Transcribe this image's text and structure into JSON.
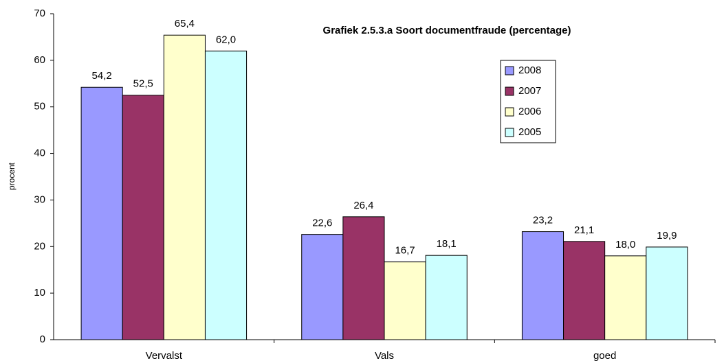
{
  "chart_data": {
    "type": "bar",
    "title": "Grafiek 2.5.3.a Soort documentfraude (percentage)",
    "y_label": "procent",
    "categories": [
      "Vervalst",
      "Vals",
      "goed"
    ],
    "series": [
      {
        "name": "2008",
        "color": "#9999ff",
        "values": [
          54.2,
          22.6,
          23.2
        ],
        "value_labels": [
          "54,2",
          "22,6",
          "23,2"
        ]
      },
      {
        "name": "2007",
        "color": "#993366",
        "values": [
          52.5,
          26.4,
          21.1
        ],
        "value_labels": [
          "52,5",
          "26,4",
          "21,1"
        ]
      },
      {
        "name": "2006",
        "color": "#ffffcc",
        "values": [
          65.4,
          16.7,
          18.0
        ],
        "value_labels": [
          "65,4",
          "16,7",
          "18,0"
        ]
      },
      {
        "name": "2005",
        "color": "#ccffff",
        "values": [
          62.0,
          18.1,
          19.9
        ],
        "value_labels": [
          "62,0",
          "18,1",
          "19,9"
        ]
      }
    ],
    "ylim": [
      0,
      70
    ],
    "yticks": [
      0,
      10,
      20,
      30,
      40,
      50,
      60,
      70
    ],
    "grid": false,
    "legend": "upper right"
  }
}
